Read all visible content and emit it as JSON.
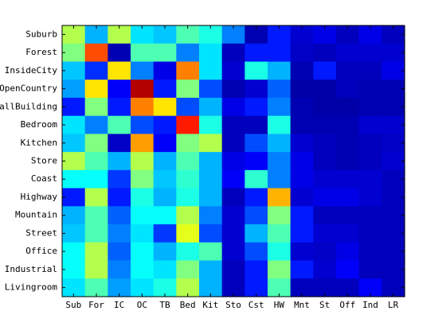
{
  "chart_data": {
    "type": "heatmap",
    "title": "",
    "xlabel": "",
    "ylabel": "",
    "x_categories": [
      "Sub",
      "For",
      "IC",
      "OC",
      "TB",
      "Bed",
      "Kit",
      "Sto",
      "Cst",
      "HW",
      "Mnt",
      "St",
      "Off",
      "Ind",
      "LR"
    ],
    "y_categories": [
      "Suburb",
      "Forest",
      "InsideCity",
      "OpenCountry",
      "TallBuilding",
      "Bedroom",
      "Kitchen",
      "Store",
      "Coast",
      "Highway",
      "Mountain",
      "Street",
      "Office",
      "Industrial",
      "Livingroom"
    ],
    "colormap": "jet",
    "value_range": [
      0,
      1
    ],
    "grid": false,
    "legend": "none",
    "values": [
      [
        0.55,
        0.3,
        0.55,
        0.35,
        0.32,
        0.45,
        0.4,
        0.25,
        0.05,
        0.15,
        0.08,
        0.1,
        0.06,
        0.1,
        0.06
      ],
      [
        0.5,
        0.8,
        0.05,
        0.45,
        0.45,
        0.25,
        0.35,
        0.06,
        0.15,
        0.15,
        0.07,
        0.06,
        0.08,
        0.08,
        0.08
      ],
      [
        0.32,
        0.17,
        0.65,
        0.25,
        0.1,
        0.75,
        0.35,
        0.08,
        0.4,
        0.3,
        0.05,
        0.15,
        0.06,
        0.06,
        0.1
      ],
      [
        0.28,
        0.65,
        0.12,
        0.95,
        0.15,
        0.5,
        0.2,
        0.05,
        0.08,
        0.22,
        0.04,
        0.04,
        0.06,
        0.05,
        0.05
      ],
      [
        0.15,
        0.5,
        0.15,
        0.75,
        0.65,
        0.2,
        0.3,
        0.1,
        0.15,
        0.25,
        0.05,
        0.04,
        0.04,
        0.05,
        0.05
      ],
      [
        0.35,
        0.25,
        0.45,
        0.2,
        0.15,
        0.85,
        0.4,
        0.06,
        0.06,
        0.4,
        0.05,
        0.05,
        0.05,
        0.08,
        0.08
      ],
      [
        0.32,
        0.5,
        0.07,
        0.72,
        0.12,
        0.5,
        0.55,
        0.06,
        0.2,
        0.3,
        0.08,
        0.06,
        0.05,
        0.06,
        0.07
      ],
      [
        0.55,
        0.45,
        0.3,
        0.55,
        0.3,
        0.45,
        0.3,
        0.1,
        0.12,
        0.25,
        0.1,
        0.06,
        0.05,
        0.06,
        0.08
      ],
      [
        0.38,
        0.38,
        0.18,
        0.5,
        0.32,
        0.42,
        0.3,
        0.12,
        0.42,
        0.25,
        0.1,
        0.08,
        0.08,
        0.08,
        0.06
      ],
      [
        0.15,
        0.55,
        0.15,
        0.4,
        0.3,
        0.4,
        0.3,
        0.06,
        0.15,
        0.7,
        0.08,
        0.1,
        0.1,
        0.08,
        0.06
      ],
      [
        0.3,
        0.45,
        0.22,
        0.38,
        0.38,
        0.55,
        0.25,
        0.08,
        0.2,
        0.5,
        0.15,
        0.06,
        0.06,
        0.06,
        0.06
      ],
      [
        0.32,
        0.45,
        0.25,
        0.35,
        0.18,
        0.6,
        0.2,
        0.08,
        0.3,
        0.45,
        0.15,
        0.08,
        0.08,
        0.06,
        0.06
      ],
      [
        0.38,
        0.55,
        0.22,
        0.38,
        0.3,
        0.4,
        0.45,
        0.08,
        0.2,
        0.4,
        0.08,
        0.07,
        0.1,
        0.06,
        0.06
      ],
      [
        0.38,
        0.55,
        0.25,
        0.38,
        0.35,
        0.5,
        0.3,
        0.06,
        0.15,
        0.5,
        0.15,
        0.08,
        0.12,
        0.06,
        0.06
      ],
      [
        0.35,
        0.45,
        0.28,
        0.35,
        0.4,
        0.55,
        0.3,
        0.06,
        0.15,
        0.45,
        0.06,
        0.06,
        0.06,
        0.12,
        0.06
      ]
    ]
  }
}
